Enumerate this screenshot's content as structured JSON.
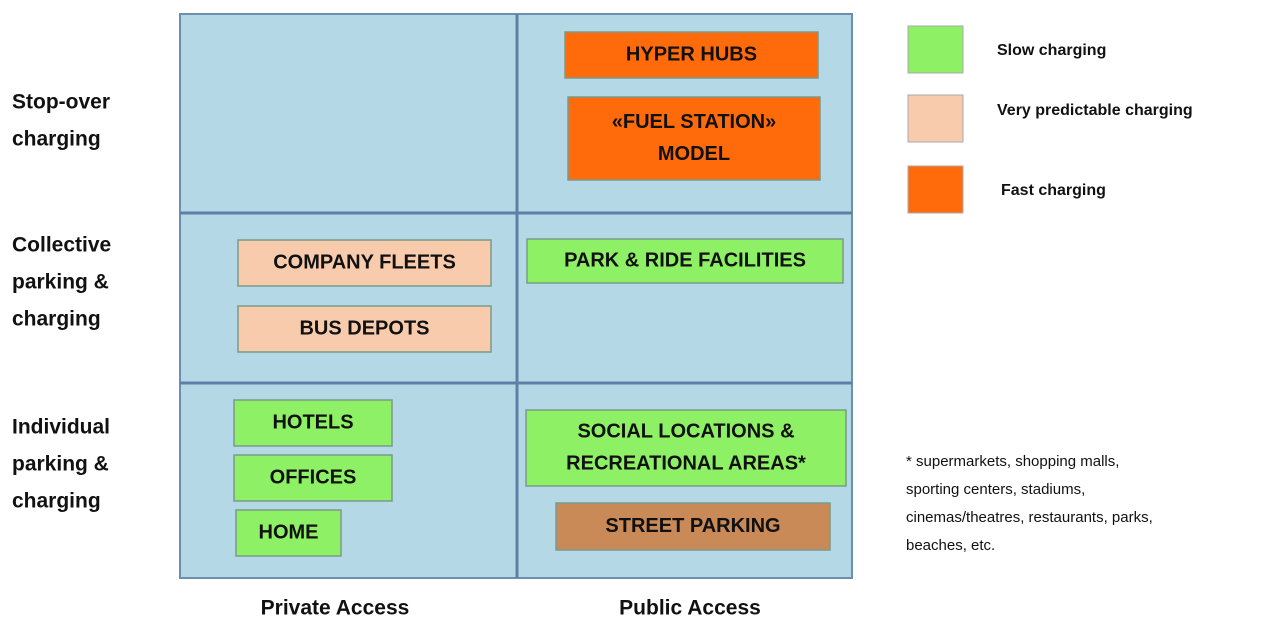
{
  "rows": [
    {
      "lines": [
        "Stop-over",
        "charging"
      ]
    },
    {
      "lines": [
        "Collective",
        "parking &",
        "charging"
      ]
    },
    {
      "lines": [
        "Individual",
        "parking &",
        "charging"
      ]
    }
  ],
  "columns": [
    "Private Access",
    "Public Access"
  ],
  "boxes": [
    {
      "lines": [
        "HYPER HUBS"
      ],
      "color": "#ff6a0a"
    },
    {
      "lines": [
        "«FUEL STATION»",
        "MODEL"
      ],
      "color": "#ff6a0a"
    },
    {
      "lines": [
        "COMPANY FLEETS"
      ],
      "color": "#f8cbad"
    },
    {
      "lines": [
        "BUS DEPOTS"
      ],
      "color": "#f8cbad"
    },
    {
      "lines": [
        "PARK & RIDE FACILITIES"
      ],
      "color": "#8ef064"
    },
    {
      "lines": [
        "HOTELS"
      ],
      "color": "#8ef064"
    },
    {
      "lines": [
        "OFFICES"
      ],
      "color": "#8ef064"
    },
    {
      "lines": [
        "HOME"
      ],
      "color": "#8ef064"
    },
    {
      "lines": [
        "SOCIAL LOCATIONS &",
        "RECREATIONAL AREAS*"
      ],
      "color": "#8ef064"
    },
    {
      "lines": [
        "STREET PARKING"
      ],
      "color": "#c98a58"
    }
  ],
  "legend": [
    {
      "label": "Slow charging",
      "color": "#8ef064"
    },
    {
      "label": "Very predictable charging",
      "color": "#f8cbad"
    },
    {
      "label": "Fast charging",
      "color": "#ff6a0a"
    }
  ],
  "footnote": [
    "* supermarkets, shopping malls,",
    "sporting centers, stadiums,",
    "cinemas/theatres, restaurants, parks,",
    "beaches, etc."
  ]
}
